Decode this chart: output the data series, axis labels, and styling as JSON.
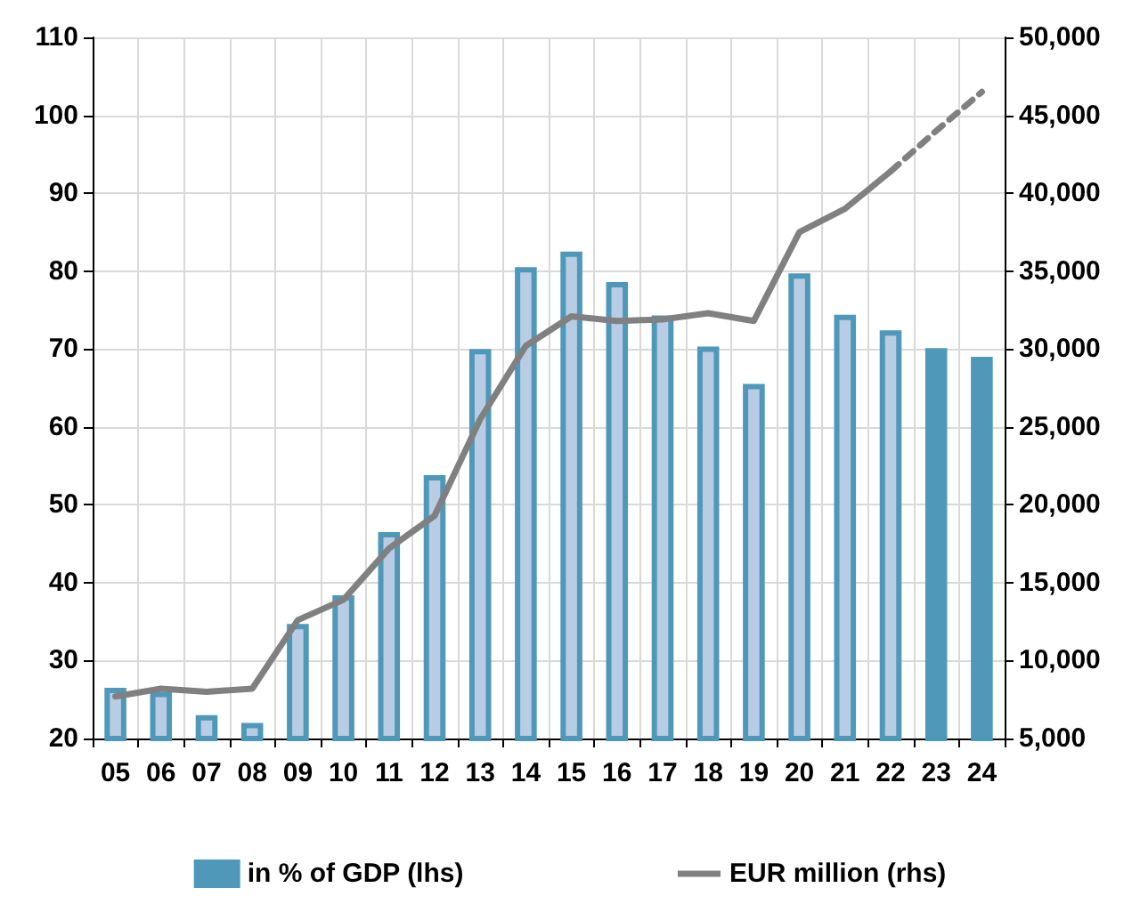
{
  "chart_data": {
    "type": "bar",
    "categories": [
      "05",
      "06",
      "07",
      "08",
      "09",
      "10",
      "11",
      "12",
      "13",
      "14",
      "15",
      "16",
      "17",
      "18",
      "19",
      "20",
      "21",
      "22",
      "23",
      "24"
    ],
    "series": [
      {
        "name": "in % of GDP (lhs)",
        "color": "#4f98ba",
        "colors": [
          "#b8cce4",
          "#b8cce4",
          "#b8cce4",
          "#b8cce4",
          "#b8cce4",
          "#b8cce4",
          "#b8cce4",
          "#b8cce4",
          "#b8cce4",
          "#b8cce4",
          "#b8cce4",
          "#b8cce4",
          "#b8cce4",
          "#b8cce4",
          "#b8cce4",
          "#b8cce4",
          "#b8cce4",
          "#b8cce4",
          "#4f98ba",
          "#4f98ba"
        ],
        "values": [
          26.5,
          26,
          23,
          22,
          34.7,
          38.4,
          46.5,
          53.8,
          70,
          80.5,
          82.5,
          78.6,
          74.3,
          70.3,
          65.5,
          79.7,
          74.4,
          72.4,
          70.1,
          69
        ]
      },
      {
        "name": "EUR million (rhs)",
        "type": "line",
        "axis": "y2",
        "color": "#808080",
        "line_style": "solid",
        "values": [
          7700,
          8200,
          8000,
          8200,
          12600,
          13900,
          17200,
          19300,
          25500,
          30200,
          32100,
          31800,
          31900,
          32300,
          31800,
          37500,
          39000,
          41400,
          null,
          null
        ]
      },
      {
        "type": "line",
        "axis": "y2",
        "color": "#808080",
        "line_style": "dashed",
        "values": [
          null,
          null,
          null,
          null,
          null,
          null,
          null,
          null,
          null,
          null,
          null,
          null,
          null,
          null,
          null,
          null,
          null,
          41400,
          44000,
          46500
        ]
      }
    ],
    "ylim": [
      20,
      110
    ],
    "yticks": [
      20,
      30,
      40,
      50,
      60,
      70,
      80,
      90,
      100,
      110
    ],
    "y2lim": [
      5000,
      50000
    ],
    "y2ticks": [
      {
        "value": 5000,
        "label": "5,000"
      },
      {
        "value": 10000,
        "label": "10,000"
      },
      {
        "value": 15000,
        "label": "15,000"
      },
      {
        "value": 20000,
        "label": "20,000"
      },
      {
        "value": 25000,
        "label": "25,000"
      },
      {
        "value": 30000,
        "label": "30,000"
      },
      {
        "value": 35000,
        "label": "35,000"
      },
      {
        "value": 40000,
        "label": "40,000"
      },
      {
        "value": 45000,
        "label": "45,000"
      },
      {
        "value": 50000,
        "label": "50,000"
      }
    ],
    "grid": true,
    "legend": "bottom",
    "marker": "none"
  }
}
